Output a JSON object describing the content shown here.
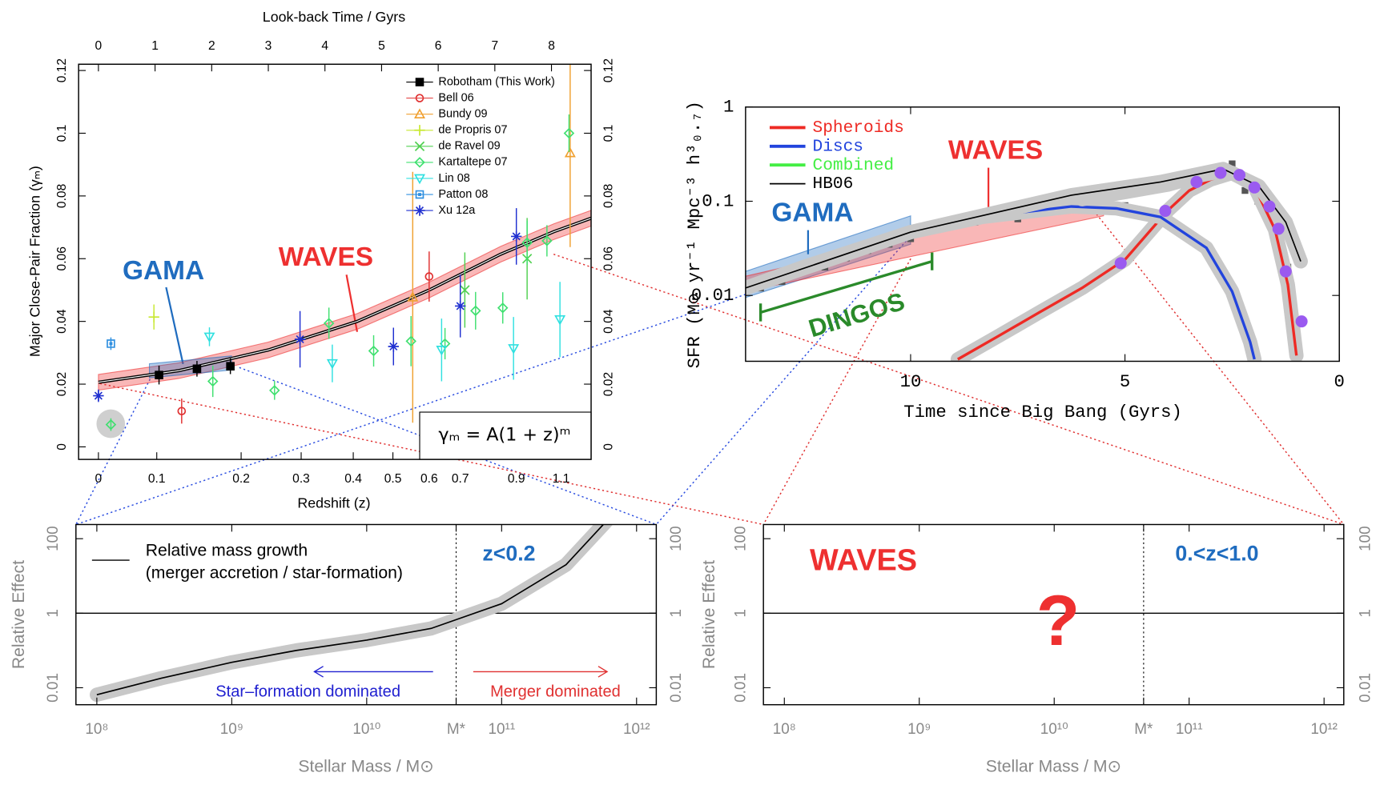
{
  "chart_data": [
    {
      "type": "scatter",
      "x_label": "Look-back Time / Gyrs",
      "x2_label": "Redshift (z)",
      "y_label": "Major Close-Pair Fraction (γₘ)",
      "formula": "γₘ = A(1 + z)ᵐ",
      "xlim": [
        -0.35,
        8.7
      ],
      "ylim": [
        -0.004,
        0.122
      ],
      "xticks": [
        0,
        1,
        2,
        3,
        4,
        5,
        6,
        7,
        8
      ],
      "x2ticks": [
        {
          "value": 0,
          "label": "0"
        },
        {
          "value": 1.03,
          "label": "0.1"
        },
        {
          "value": 2.52,
          "label": "0.2"
        },
        {
          "value": 3.58,
          "label": "0.3"
        },
        {
          "value": 4.5,
          "label": "0.4"
        },
        {
          "value": 5.2,
          "label": "0.5"
        },
        {
          "value": 5.84,
          "label": "0.6"
        },
        {
          "value": 6.39,
          "label": "0.7"
        },
        {
          "value": 7.38,
          "label": "0.9"
        },
        {
          "value": 8.17,
          "label": "1.1"
        }
      ],
      "yticks": [
        0,
        0.02,
        0.04,
        0.06,
        0.08,
        0.1,
        0.12
      ],
      "regions": [
        {
          "label": "WAVES",
          "color": "#ee3030",
          "x": [
            0,
            1.42,
            3.0,
            4.57,
            5.84,
            7.1,
            8.04,
            8.7
          ],
          "lower": [
            0.0181,
            0.0218,
            0.0284,
            0.0375,
            0.0475,
            0.0589,
            0.0661,
            0.0704
          ],
          "upper": [
            0.0231,
            0.0268,
            0.0334,
            0.0425,
            0.0525,
            0.0639,
            0.0711,
            0.0754
          ]
        },
        {
          "label": "GAMA",
          "color": "#1f6cbf",
          "x": [
            0.9,
            2.35
          ],
          "lower": [
            0.022,
            0.0245
          ],
          "upper": [
            0.0265,
            0.029
          ]
        }
      ],
      "fit": {
        "x": [
          0,
          1.42,
          3.0,
          4.57,
          5.84,
          7.1,
          8.04,
          8.7
        ],
        "values": [
          0.0206,
          0.0243,
          0.0309,
          0.04,
          0.05,
          0.0614,
          0.0686,
          0.0729
        ]
      },
      "series": [
        {
          "name": "Robotham (This Work)",
          "color": "#000000",
          "marker": "square",
          "x": [
            1.07,
            1.74,
            2.33
          ],
          "values": [
            0.0229,
            0.0249,
            0.0257
          ],
          "errors": [
            0.003,
            0.0025,
            0.0025
          ]
        },
        {
          "name": "Bell 06",
          "color": "#e03030",
          "marker": "circle",
          "x": [
            1.47,
            5.84
          ],
          "values": [
            0.0114,
            0.0543
          ],
          "errors": [
            0.004,
            0.008
          ]
        },
        {
          "name": "Bundy 09",
          "color": "#f0a030",
          "marker": "triangle",
          "x": [
            5.55,
            8.33
          ],
          "values": [
            0.0477,
            0.0937
          ],
          "errors": [
            0.04,
            0.03
          ]
        },
        {
          "name": "de Propris 07",
          "color": "#c8e830",
          "marker": "plus",
          "x": [
            0.98
          ],
          "values": [
            0.0414
          ],
          "errors": [
            0.004
          ]
        },
        {
          "name": "de Ravel 09",
          "color": "#50d050",
          "marker": "cross",
          "x": [
            6.47,
            7.57
          ],
          "values": [
            0.05,
            0.06
          ],
          "errors": [
            0.012,
            0.013
          ]
        },
        {
          "name": "Kartaltepe 07",
          "color": "#40e070",
          "marker": "diamond",
          "x": [
            0.22,
            2.02,
            3.11,
            4.07,
            4.86,
            5.52,
            6.12,
            6.66,
            7.14,
            7.57,
            7.92,
            8.31
          ],
          "values": [
            0.0071,
            0.0209,
            0.018,
            0.0394,
            0.0306,
            0.0337,
            0.0329,
            0.0434,
            0.0443,
            0.0651,
            0.0657,
            0.1
          ],
          "errors": [
            0.002,
            0.005,
            0.003,
            0.005,
            0.005,
            0.008,
            0.005,
            0.006,
            0.005,
            0.007,
            0.005,
            0.006
          ]
        },
        {
          "name": "Lin 08",
          "color": "#30e0e0",
          "marker": "tridown",
          "x": [
            1.96,
            4.13,
            6.06,
            7.33,
            8.15
          ],
          "values": [
            0.0351,
            0.0266,
            0.0309,
            0.0314,
            0.0406
          ],
          "errors": [
            0.003,
            0.006,
            0.01,
            0.01,
            0.012
          ]
        },
        {
          "name": "Patton 08",
          "color": "#3090e0",
          "marker": "boxsq",
          "x": [
            0.22
          ],
          "values": [
            0.0329
          ],
          "errors": [
            0.002
          ]
        },
        {
          "name": "Xu 12a",
          "color": "#2030d0",
          "marker": "star",
          "x": [
            0,
            3.56,
            5.21,
            6.39,
            7.38
          ],
          "values": [
            0.0163,
            0.0343,
            0.032,
            0.0449,
            0.0671
          ],
          "errors": [
            0.002,
            0.009,
            0.006,
            0.01,
            0.009
          ]
        }
      ]
    },
    {
      "type": "line",
      "log_y": true,
      "x_label": "Time since Big Bang (Gyrs)",
      "y_label": "SFR (M⊙ yr⁻¹ Mpc⁻³ h³₀.₇)",
      "xlim": [
        13.85,
        0
      ],
      "ylim": [
        0.002,
        1
      ],
      "xticks": [
        10,
        5,
        0
      ],
      "yticks": [
        1,
        0.1,
        0.01
      ],
      "regions": [
        {
          "label": "GAMA",
          "color": "#1f6cbf",
          "x": [
            13.85,
            10
          ],
          "lower": [
            0.0095,
            0.035
          ],
          "upper": [
            0.018,
            0.07
          ]
        },
        {
          "label": "WAVES",
          "color": "#ee3030",
          "x": [
            13.85,
            5.5
          ],
          "lower": [
            0.011,
            0.07
          ],
          "upper": [
            0.016,
            0.12
          ]
        }
      ],
      "brackets": [
        {
          "label": "DINGOS",
          "color": "#2a8a2a",
          "x": [
            13.5,
            9.5
          ],
          "values": [
            0.0066,
            0.023
          ]
        }
      ],
      "series": [
        {
          "color": "#555555",
          "marker": "gsq",
          "x": [
            13.5,
            13.0,
            12.5,
            12.0,
            11.5,
            11.0,
            10.5,
            10.0,
            9.5,
            9.0,
            8.5,
            8.0,
            7.5,
            7.0,
            6.5,
            6.0,
            5.5,
            5.0,
            4.5,
            4.0,
            3.5,
            3.0,
            2.5,
            2.2,
            1.9,
            1.6,
            1.4,
            1.2
          ],
          "values": [
            0.012,
            0.014,
            0.018,
            0.02,
            0.025,
            0.03,
            0.035,
            0.04,
            0.05,
            0.055,
            0.06,
            0.07,
            0.065,
            0.08,
            0.09,
            0.1,
            0.12,
            0.09,
            0.13,
            0.15,
            0.13,
            0.2,
            0.25,
            0.13,
            0.1,
            0.06,
            0.03,
            0.02
          ]
        },
        {
          "name": "Spheroids",
          "color": "#ee2a24",
          "x": [
            8.9,
            8,
            7,
            6,
            5,
            4,
            3.5,
            3,
            2.5,
            2,
            1.5,
            1.2,
            1.0
          ],
          "values": [
            0.0021,
            0.0036,
            0.0066,
            0.012,
            0.024,
            0.08,
            0.13,
            0.17,
            0.2,
            0.15,
            0.05,
            0.013,
            0.0023
          ]
        },
        {
          "name": "Discs",
          "color": "#2244dd",
          "x": [
            13.85,
            12.5,
            10,
            8.33,
            6.25,
            5.2,
            4.17,
            3.1,
            2.5,
            2.08,
            1.98
          ],
          "values": [
            0.012,
            0.02,
            0.047,
            0.068,
            0.088,
            0.084,
            0.068,
            0.032,
            0.011,
            0.0032,
            0.0021
          ]
        },
        {
          "name": "Combined",
          "color": "#44ee44",
          "x": [
            6,
            5,
            4,
            3.2,
            2.7
          ],
          "values": [
            0.105,
            0.125,
            0.15,
            0.19,
            0.21
          ]
        },
        {
          "name": "HB06",
          "color": "#000000",
          "x": [
            13.85,
            10,
            6.25,
            4.17,
            2.71,
            1.88,
            1.25,
            0.9
          ],
          "values": [
            0.012,
            0.047,
            0.116,
            0.16,
            0.22,
            0.145,
            0.06,
            0.023
          ]
        },
        {
          "color": "#9a5af0",
          "marker": "dot",
          "x": [
            5.1,
            4.06,
            3.33,
            2.77,
            2.33,
            1.98,
            1.63,
            1.42,
            1.25,
            0.88
          ],
          "values": [
            0.022,
            0.079,
            0.16,
            0.2,
            0.19,
            0.14,
            0.088,
            0.051,
            0.018,
            0.0053
          ]
        }
      ]
    },
    {
      "type": "line",
      "log_x": true,
      "log_y": true,
      "x_label": "Stellar Mass / M⊙",
      "y_label": "Relative Effect",
      "xlim": [
        70000000,
        1400000000000
      ],
      "ylim": [
        0.0035,
        240
      ],
      "xticks": [
        {
          "value": 100000000,
          "label": "10⁸"
        },
        {
          "value": 1000000000,
          "label": "10⁹"
        },
        {
          "value": 10000000000,
          "label": "10¹⁰"
        },
        {
          "value": 46000000000,
          "label": "M*"
        },
        {
          "value": 100000000000,
          "label": "10¹¹"
        },
        {
          "value": 1000000000000,
          "label": "10¹²"
        }
      ],
      "yticks": [
        100,
        1,
        0.01
      ],
      "hline": 1,
      "vline": 46000000000,
      "legend_note": "(merger accretion / star-formation)",
      "series": [
        {
          "name": "Relative mass growth",
          "color": "#000000",
          "x": [
            100000000,
            300000000,
            1000000000,
            3000000000,
            10000000000,
            30000000000,
            100000000000,
            300000000000,
            600000000000
          ],
          "values": [
            0.0065,
            0.018,
            0.048,
            0.1,
            0.19,
            0.39,
            1.8,
            20,
            300
          ]
        }
      ],
      "annotations": [
        {
          "text": "z<0.2",
          "color": "#1f6cbf"
        },
        {
          "text": "Star–formation dominated",
          "color": "#2020d0"
        },
        {
          "text": "Merger dominated",
          "color": "#e03030"
        }
      ]
    },
    {
      "type": "line",
      "log_x": true,
      "log_y": true,
      "x_label": "Stellar Mass / M⊙",
      "y_label": "Relative Effect",
      "xlim": [
        70000000,
        1400000000000
      ],
      "ylim": [
        0.0035,
        240
      ],
      "xticks": [
        {
          "value": 100000000,
          "label": "10⁸"
        },
        {
          "value": 1000000000,
          "label": "10⁹"
        },
        {
          "value": 10000000000,
          "label": "10¹⁰"
        },
        {
          "value": 46000000000,
          "label": "M*"
        },
        {
          "value": 100000000000,
          "label": "10¹¹"
        },
        {
          "value": 1000000000000,
          "label": "10¹²"
        }
      ],
      "yticks": [
        100,
        1,
        0.01
      ],
      "hline": 1,
      "vline": 46000000000,
      "series": [],
      "annotations": [
        {
          "text": "WAVES",
          "color": "#ee3030"
        },
        {
          "text": "?",
          "color": "#ee3030"
        },
        {
          "text": "0.<z<1.0",
          "color": "#1f6cbf"
        }
      ]
    }
  ]
}
